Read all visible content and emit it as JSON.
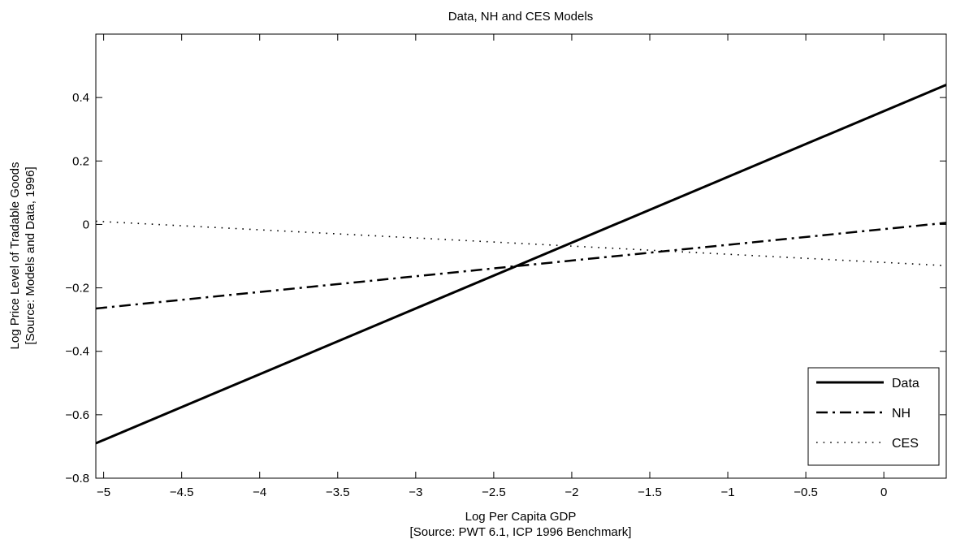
{
  "chart_data": {
    "type": "line",
    "title": "Data, NH and CES Models",
    "xlabel": "Log Per Capita GDP",
    "xlabel_source": "[Source: PWT 6.1, ICP 1996 Benchmark]",
    "ylabel": "Log Price Level of Tradable Goods",
    "ylabel_source": "[Source: Models and Data, 1996]",
    "xlim": [
      -5.05,
      0.4
    ],
    "ylim": [
      -0.8,
      0.6
    ],
    "x_ticks": [
      -5,
      -4.5,
      -4,
      -3.5,
      -3,
      -2.5,
      -2,
      -1.5,
      -1,
      -0.5,
      0
    ],
    "x_tick_labels": [
      "−5",
      "−4.5",
      "−4",
      "−3.5",
      "−3",
      "−2.5",
      "−2",
      "−1.5",
      "−1",
      "−0.5",
      "0"
    ],
    "y_ticks": [
      -0.8,
      -0.6,
      -0.4,
      -0.2,
      0,
      0.2,
      0.4
    ],
    "y_tick_labels": [
      "−0.8",
      "−0.6",
      "−0.4",
      "−0.2",
      "0",
      "0.2",
      "0.4"
    ],
    "grid": false,
    "legend_position": "bottom-right",
    "series": [
      {
        "name": "Data",
        "style": "solid",
        "color": "#000000",
        "x": [
          -5.05,
          0.4
        ],
        "y": [
          -0.69,
          0.44
        ]
      },
      {
        "name": "NH",
        "style": "dashdot",
        "color": "#000000",
        "x": [
          -5.05,
          0.4
        ],
        "y": [
          -0.265,
          0.005
        ]
      },
      {
        "name": "CES",
        "style": "dotted",
        "color": "#000000",
        "x": [
          -5.05,
          0.4
        ],
        "y": [
          0.01,
          -0.13
        ]
      }
    ]
  }
}
